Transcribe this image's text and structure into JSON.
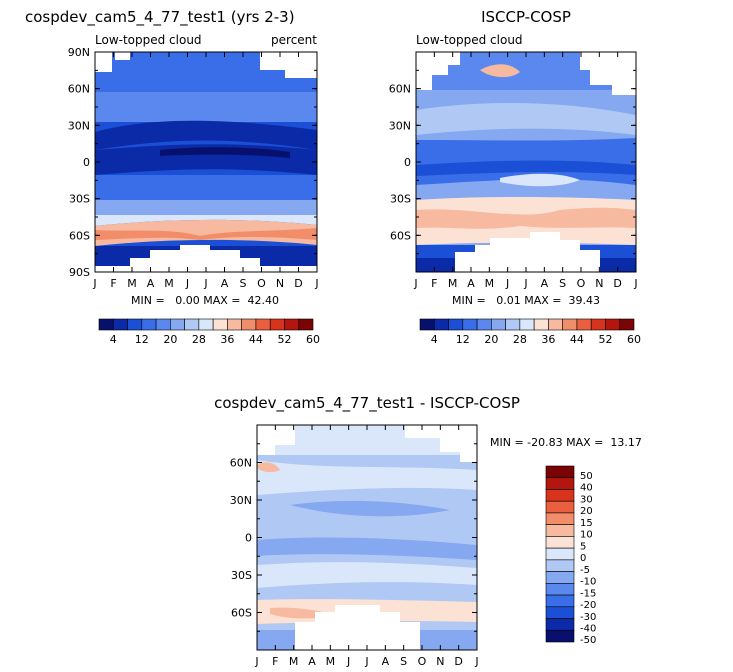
{
  "chart_data": [
    {
      "type": "heatmap",
      "title": "cospdev_cam5_4_77_test1 (yrs 2-3)",
      "subtitle_left": "Low-topped cloud",
      "subtitle_right": "percent",
      "x_ticks": [
        "J",
        "F",
        "M",
        "A",
        "M",
        "J",
        "J",
        "A",
        "S",
        "O",
        "N",
        "D",
        "J"
      ],
      "y_ticks": [
        "90N",
        "60N",
        "30N",
        "0",
        "30S",
        "60S",
        "90S"
      ],
      "ylim": [
        -90,
        90
      ],
      "stats": "MIN =   0.00 MAX =  42.40",
      "colorbar": {
        "labels": [
          "4",
          "12",
          "20",
          "28",
          "36",
          "44",
          "52",
          "60"
        ]
      }
    },
    {
      "type": "heatmap",
      "title": "ISCCP-COSP",
      "subtitle_left": "Low-topped cloud",
      "x_ticks": [
        "J",
        "F",
        "M",
        "A",
        "M",
        "J",
        "J",
        "A",
        "S",
        "O",
        "N",
        "D",
        "J"
      ],
      "y_ticks": [
        "60N",
        "30N",
        "0",
        "30S",
        "60S"
      ],
      "ylim": [
        -90,
        90
      ],
      "stats": "MIN =   0.01 MAX =  39.43",
      "colorbar": {
        "labels": [
          "4",
          "12",
          "20",
          "28",
          "36",
          "44",
          "52",
          "60"
        ]
      }
    },
    {
      "type": "heatmap",
      "title": "cospdev_cam5_4_77_test1 - ISCCP-COSP",
      "x_ticks": [
        "J",
        "F",
        "M",
        "A",
        "M",
        "J",
        "J",
        "A",
        "S",
        "O",
        "N",
        "D",
        "J"
      ],
      "y_ticks": [
        "60N",
        "30N",
        "0",
        "30S",
        "60S"
      ],
      "ylim": [
        -90,
        90
      ],
      "stats": "MIN = -20.83 MAX =  13.17",
      "colorbar": {
        "labels": [
          "50",
          "40",
          "30",
          "20",
          "15",
          "10",
          "5",
          "0",
          "-5",
          "-10",
          "-15",
          "-20",
          "-30",
          "-40",
          "-50"
        ]
      }
    }
  ],
  "palette_seq": [
    "#08106e",
    "#0a2aa8",
    "#1a4fd6",
    "#3a6ee8",
    "#5a88ee",
    "#86a8f0",
    "#b0c8f4",
    "#dae6fa",
    "#fbe2d4",
    "#f7b9a0",
    "#f28d6a",
    "#ea5f3f",
    "#d8331d",
    "#b4160d",
    "#7a0404"
  ],
  "palette_div": [
    "#7a0404",
    "#b4160d",
    "#d8331d",
    "#ea5f3f",
    "#f28d6a",
    "#f7b9a0",
    "#fbe2d4",
    "#dae6fa",
    "#b0c8f4",
    "#86a8f0",
    "#5a88ee",
    "#3a6ee8",
    "#1a4fd6",
    "#0a2aa8",
    "#08106e"
  ]
}
